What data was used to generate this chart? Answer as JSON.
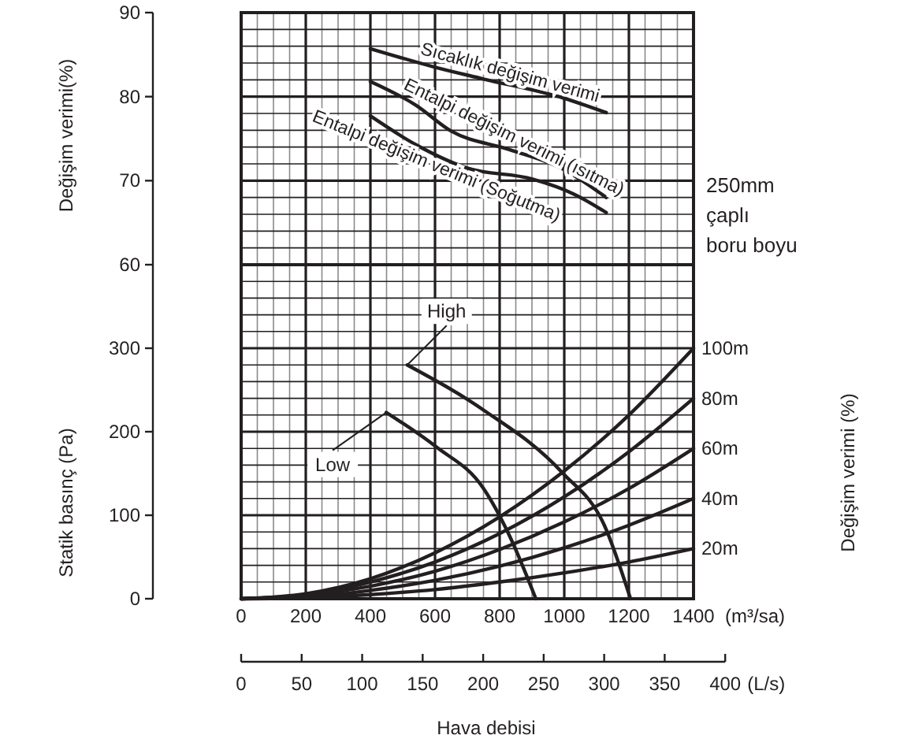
{
  "chart_data": [
    {
      "type": "line",
      "ylabel": "Değişim verimi(%)",
      "xlim": [
        0,
        1400
      ],
      "xticks": [
        0,
        200,
        400,
        600,
        800,
        1000,
        1200,
        1400
      ],
      "ylim": [
        60,
        90
      ],
      "yticks": [
        60,
        70,
        80,
        90
      ],
      "tick_labels": "y",
      "grid": true,
      "line_style": "solid",
      "marker": "none",
      "series": [
        {
          "name": "Sıcaklık değişim verimi",
          "color": "#231f20",
          "x": [
            400,
            600,
            750,
            1000,
            1130
          ],
          "values": [
            85.7,
            83.5,
            82.1,
            79.8,
            78.1
          ]
        },
        {
          "name": "Entalpi değişim verimi (ısıtma)",
          "color": "#231f20",
          "x": [
            400,
            540,
            650,
            830,
            990,
            1130
          ],
          "values": [
            81.8,
            79.0,
            75.9,
            73.7,
            71.5,
            68.0
          ]
        },
        {
          "name": "Entalpi değişim verimi (Soğutma)",
          "color": "#231f20",
          "x": [
            400,
            540,
            700,
            900,
            1030,
            1130
          ],
          "values": [
            77.7,
            74.3,
            71.5,
            70.2,
            68.4,
            66.2
          ]
        }
      ]
    },
    {
      "type": "line",
      "ylabel": "Statik basınç (Pa)",
      "xlabel": "Hava debisi",
      "x2label": "(L/s)",
      "xlim": [
        0,
        1400
      ],
      "xticks": [
        0,
        200,
        400,
        600,
        800,
        1000,
        1200,
        1400
      ],
      "ylim": [
        0,
        400
      ],
      "yticks": [
        0,
        100,
        200,
        300
      ],
      "x2lim": [
        0,
        400
      ],
      "x2ticks": [
        0,
        50,
        100,
        150,
        200,
        250,
        300,
        350,
        400
      ],
      "grid": true,
      "line_style": "solid",
      "marker": "none",
      "annotations": [
        "(m³/sa)",
        "Değişim verimi (%)",
        "250mm çaplı boru boyu"
      ],
      "series": [
        {
          "name": "High",
          "color": "#231f20",
          "x": [
            514,
            750,
            994,
            1124,
            1205
          ],
          "values": [
            280,
            226,
            151,
            88,
            0
          ]
        },
        {
          "name": "Low",
          "color": "#231f20",
          "x": [
            449,
            603,
            750,
            831,
            912
          ],
          "values": [
            223,
            182,
            132,
            75,
            0
          ]
        },
        {
          "name": "100m",
          "color": "#231f20",
          "x": [
            0,
            200,
            400,
            600,
            800,
            1000,
            1200,
            1400
          ],
          "values": [
            0,
            6,
            24,
            55,
            98,
            153,
            220,
            300
          ]
        },
        {
          "name": "80m",
          "color": "#231f20",
          "x": [
            0,
            200,
            400,
            600,
            800,
            1000,
            1200,
            1400
          ],
          "values": [
            0,
            5,
            20,
            44,
            78,
            122,
            176,
            240
          ]
        },
        {
          "name": "60m",
          "color": "#231f20",
          "x": [
            0,
            200,
            400,
            600,
            800,
            1000,
            1200,
            1400
          ],
          "values": [
            0,
            4,
            15,
            33,
            59,
            92,
            132,
            180
          ]
        },
        {
          "name": "40m",
          "color": "#231f20",
          "x": [
            0,
            200,
            400,
            600,
            800,
            1000,
            1200,
            1400
          ],
          "values": [
            0,
            2,
            10,
            22,
            39,
            61,
            88,
            120
          ]
        },
        {
          "name": "20m",
          "color": "#231f20",
          "x": [
            0,
            200,
            400,
            600,
            800,
            1000,
            1200,
            1400
          ],
          "values": [
            0,
            1,
            5,
            11,
            20,
            31,
            44,
            60
          ]
        }
      ]
    }
  ]
}
